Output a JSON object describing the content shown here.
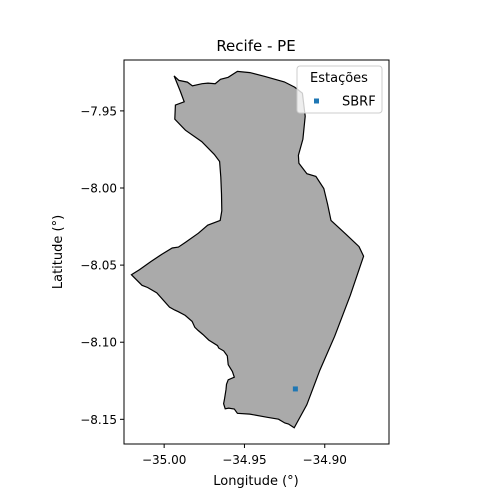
{
  "map": {
    "title": "Recife - PE",
    "xlabel": "Longitude (°)",
    "ylabel": "Latitude (°)",
    "xlim": [
      -35.025,
      -34.86
    ],
    "ylim": [
      -8.166,
      -7.917
    ],
    "xticks": [
      {
        "value": -35.0,
        "label": "−35.00"
      },
      {
        "value": -34.95,
        "label": "−34.95"
      },
      {
        "value": -34.9,
        "label": "−34.90"
      }
    ],
    "yticks": [
      {
        "value": -7.95,
        "label": "−7.95"
      },
      {
        "value": -8.0,
        "label": "−8.00"
      },
      {
        "value": -8.05,
        "label": "−8.05"
      },
      {
        "value": -8.1,
        "label": "−8.10"
      },
      {
        "value": -8.15,
        "label": "−8.15"
      }
    ],
    "region": {
      "fill": "#aaaaaa",
      "stroke": "#000000",
      "boundary": [
        [
          -34.9938,
          -7.9273
        ],
        [
          -34.9908,
          -7.9302
        ],
        [
          -34.9855,
          -7.9313
        ],
        [
          -34.9824,
          -7.9337
        ],
        [
          -34.9764,
          -7.9324
        ],
        [
          -34.9727,
          -7.932
        ],
        [
          -34.9682,
          -7.9324
        ],
        [
          -34.9649,
          -7.9295
        ],
        [
          -34.9601,
          -7.9282
        ],
        [
          -34.9544,
          -7.9244
        ],
        [
          -34.9466,
          -7.9252
        ],
        [
          -34.9376,
          -7.9276
        ],
        [
          -34.9252,
          -7.9312
        ],
        [
          -34.9188,
          -7.9346
        ],
        [
          -34.9139,
          -7.9385
        ],
        [
          -34.9122,
          -7.9535
        ],
        [
          -34.9136,
          -7.9683
        ],
        [
          -34.9164,
          -7.9788
        ],
        [
          -34.9161,
          -7.984
        ],
        [
          -34.9111,
          -7.9907
        ],
        [
          -34.9055,
          -7.9925
        ],
        [
          -34.9006,
          -8.0003
        ],
        [
          -34.8982,
          -8.0105
        ],
        [
          -34.8961,
          -8.0211
        ],
        [
          -34.8866,
          -8.0302
        ],
        [
          -34.8787,
          -8.038
        ],
        [
          -34.8758,
          -8.0442
        ],
        [
          -34.8841,
          -8.0696
        ],
        [
          -34.8938,
          -8.0961
        ],
        [
          -34.903,
          -8.1181
        ],
        [
          -34.9112,
          -8.1406
        ],
        [
          -34.919,
          -8.1555
        ],
        [
          -34.9226,
          -8.153
        ],
        [
          -34.9249,
          -8.1524
        ],
        [
          -34.9288,
          -8.1499
        ],
        [
          -34.9362,
          -8.1486
        ],
        [
          -34.9467,
          -8.1466
        ],
        [
          -34.9544,
          -8.1461
        ],
        [
          -34.9563,
          -8.1433
        ],
        [
          -34.9599,
          -8.1427
        ],
        [
          -34.962,
          -8.1432
        ],
        [
          -34.963,
          -8.1399
        ],
        [
          -34.9624,
          -8.1368
        ],
        [
          -34.9615,
          -8.1307
        ],
        [
          -34.9612,
          -8.1273
        ],
        [
          -34.9601,
          -8.1244
        ],
        [
          -34.9563,
          -8.1227
        ],
        [
          -34.9575,
          -8.119
        ],
        [
          -34.9601,
          -8.1146
        ],
        [
          -34.9607,
          -8.1089
        ],
        [
          -34.9629,
          -8.1056
        ],
        [
          -34.966,
          -8.1038
        ],
        [
          -34.9668,
          -8.1022
        ],
        [
          -34.9722,
          -8.0986
        ],
        [
          -34.9759,
          -8.095
        ],
        [
          -34.9788,
          -8.0924
        ],
        [
          -34.9809,
          -8.0903
        ],
        [
          -34.9826,
          -8.0865
        ],
        [
          -34.9869,
          -8.0826
        ],
        [
          -34.9912,
          -8.0802
        ],
        [
          -34.9934,
          -8.0792
        ],
        [
          -34.9967,
          -8.0772
        ],
        [
          -35.0046,
          -8.068
        ],
        [
          -35.0103,
          -8.0645
        ],
        [
          -35.0138,
          -8.0631
        ],
        [
          -35.0204,
          -8.0562
        ],
        [
          -35.0154,
          -8.053
        ],
        [
          -35.0083,
          -8.0477
        ],
        [
          -35.0014,
          -8.0429
        ],
        [
          -34.995,
          -8.0389
        ],
        [
          -34.9911,
          -8.0383
        ],
        [
          -34.9868,
          -8.0353
        ],
        [
          -34.9787,
          -8.0293
        ],
        [
          -34.9729,
          -8.0241
        ],
        [
          -34.9651,
          -8.021
        ],
        [
          -34.9641,
          -8.0148
        ],
        [
          -34.9643,
          -8.0038
        ],
        [
          -34.9647,
          -7.9929
        ],
        [
          -34.9655,
          -7.9828
        ],
        [
          -34.9688,
          -7.9782
        ],
        [
          -34.9766,
          -7.9699
        ],
        [
          -34.9868,
          -7.9625
        ],
        [
          -34.9934,
          -7.9554
        ],
        [
          -34.993,
          -7.9462
        ],
        [
          -34.9875,
          -7.9441
        ],
        [
          -34.9899,
          -7.9374
        ],
        [
          -34.9938,
          -7.9273
        ]
      ]
    },
    "legend": {
      "title": "Estações",
      "entries": [
        {
          "label": "SBRF",
          "color": "#1f77b4"
        }
      ],
      "placement": "top-right"
    },
    "stations": [
      {
        "name": "SBRF",
        "lon": -34.9183,
        "lat": -8.1303,
        "color": "#1f77b4"
      }
    ]
  }
}
